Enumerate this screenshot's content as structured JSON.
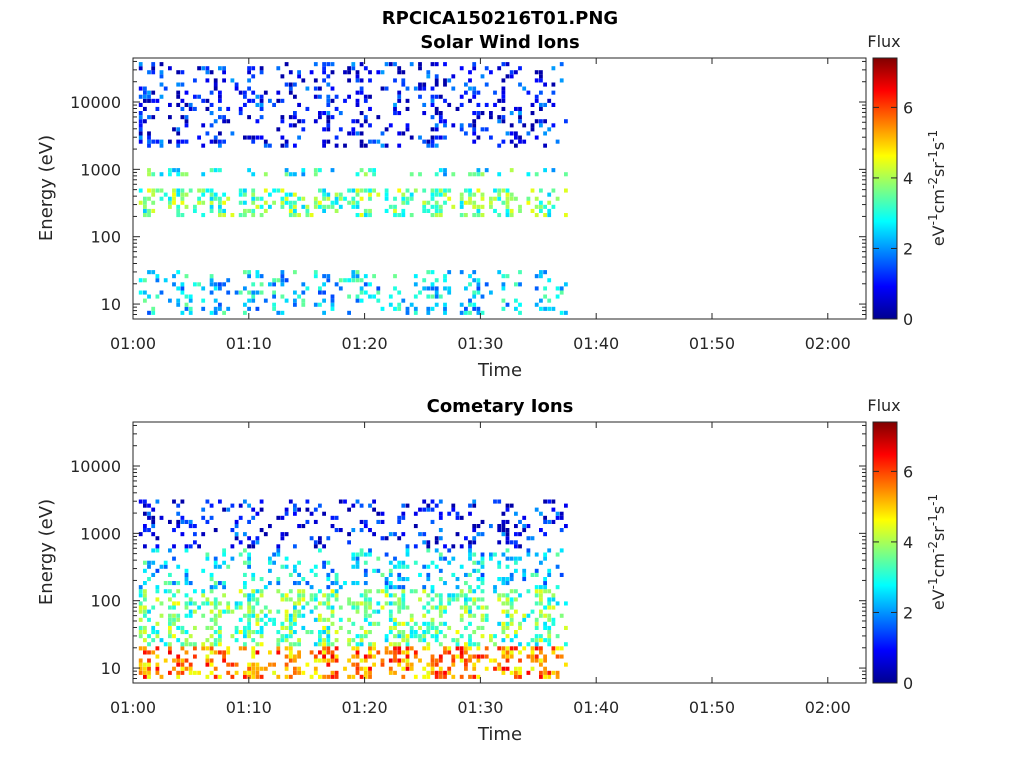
{
  "figure_title": "RPCICA150216T01.PNG",
  "colorbar": {
    "title": "Flux",
    "label": "eV⁻¹cm⁻²sr⁻¹s⁻¹",
    "label_parts": [
      "eV",
      "-1",
      "cm",
      "-2",
      "sr",
      "-1",
      "s",
      "-1"
    ],
    "range": [
      0,
      7.4
    ],
    "ticks": [
      "0",
      "2",
      "4",
      "6"
    ],
    "colormap": "jet"
  },
  "chart_data": [
    {
      "type": "heatmap",
      "title": "Solar Wind Ions",
      "xlabel": "Time",
      "ylabel": "Energy (eV)",
      "x_ticks": [
        "01:00",
        "01:10",
        "01:20",
        "01:30",
        "01:40",
        "01:50",
        "02:00"
      ],
      "y_ticks": [
        "10",
        "100",
        "1000",
        "10000"
      ],
      "y_scale": "log",
      "x_range_minutes": [
        60,
        123.3
      ],
      "y_range": [
        6,
        45000
      ],
      "data_end": "01:37",
      "dominant_features": [
        {
          "energy_eV": [
            200,
            500
          ],
          "flux": 3.5
        },
        {
          "energy_eV": [
            800,
            1000
          ],
          "flux": 3
        },
        {
          "energy_eV": [
            7,
            30
          ],
          "flux": 2.5
        },
        {
          "energy_eV": [
            2000,
            40000
          ],
          "flux": 1
        }
      ]
    },
    {
      "type": "heatmap",
      "title": "Cometary Ions",
      "xlabel": "Time",
      "ylabel": "Energy (eV)",
      "x_ticks": [
        "01:00",
        "01:10",
        "01:20",
        "01:30",
        "01:40",
        "01:50",
        "02:00"
      ],
      "y_ticks": [
        "10",
        "100",
        "1000",
        "10000"
      ],
      "y_scale": "log",
      "x_range_minutes": [
        60,
        123.3
      ],
      "y_range": [
        6,
        45000
      ],
      "data_end": "01:37",
      "dominant_features": [
        {
          "energy_eV": [
            7,
            20
          ],
          "flux": 5.5
        },
        {
          "energy_eV": [
            20,
            150
          ],
          "flux": 3.5
        },
        {
          "energy_eV": [
            150,
            600
          ],
          "flux": 2.5
        },
        {
          "energy_eV": [
            600,
            3000
          ],
          "flux": 1
        }
      ]
    }
  ]
}
